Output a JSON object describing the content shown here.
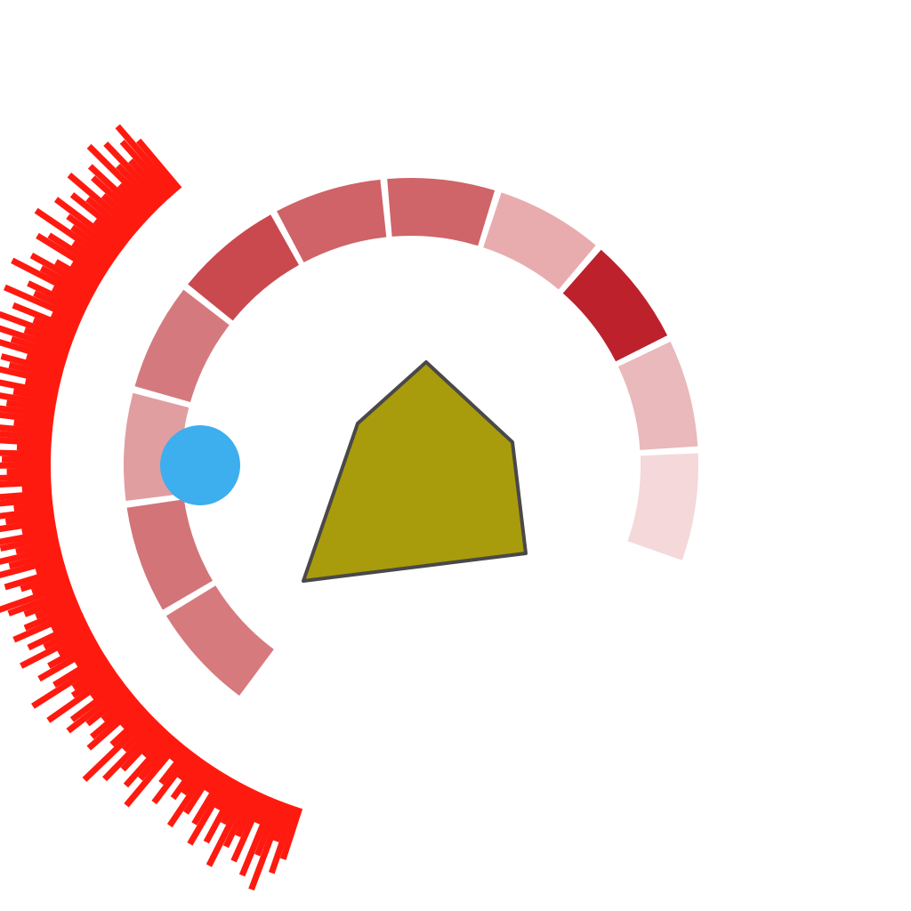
{
  "colors": {
    "background": "#ffffff",
    "spikes": "#ff1a10",
    "polygon_fill": "#a89c0c",
    "polygon_stroke": "#4a4848",
    "circle": "#3daeee"
  },
  "ring_segments": [
    {
      "value": 0.7,
      "color": "#d67a7e"
    },
    {
      "value": 0.72,
      "color": "#d37479"
    },
    {
      "value": 0.45,
      "color": "#e19ea1"
    },
    {
      "value": 0.72,
      "color": "#d47a7e"
    },
    {
      "value": 0.85,
      "color": "#c9494f"
    },
    {
      "value": 0.77,
      "color": "#cf6368"
    },
    {
      "value": 0.77,
      "color": "#cf6469"
    },
    {
      "value": 0.4,
      "color": "#e8acaf"
    },
    {
      "value": 1.0,
      "color": "#bd212c"
    },
    {
      "value": 0.32,
      "color": "#e9b9bb"
    },
    {
      "value": 0.18,
      "color": "#f4d8da"
    }
  ],
  "spike_values": [
    0.55,
    0.72,
    0.4,
    0.95,
    0.6,
    0.85,
    0.3,
    0.75,
    0.5,
    0.65,
    0.9,
    0.45,
    0.7,
    0.35,
    0.8,
    0.6,
    0.25,
    0.55,
    0.75,
    0.4,
    0.5,
    0.3,
    0.65,
    0.45,
    0.2,
    0.85,
    0.55,
    0.7,
    0.35,
    0.6,
    0.8,
    0.45,
    0.95,
    0.5,
    0.3,
    0.7,
    0.6,
    0.4,
    0.55,
    0.75,
    0.65,
    0.35,
    0.85,
    0.5,
    0.45,
    0.9,
    0.6,
    0.3,
    0.7,
    0.55,
    0.4,
    0.8,
    0.5,
    0.65,
    0.35,
    0.75,
    0.6,
    0.45,
    0.55,
    0.7,
    0.85,
    0.4,
    0.5,
    0.65,
    0.3,
    0.75,
    0.55,
    0.95,
    0.45,
    0.6,
    0.7,
    0.35,
    0.8,
    0.5,
    0.65,
    0.4,
    0.9,
    0.55,
    0.3,
    0.75,
    0.6,
    0.45,
    0.85,
    0.5,
    0.7,
    0.35,
    0.65,
    0.55,
    0.8,
    0.4,
    0.75,
    0.6,
    0.5,
    0.9,
    0.45,
    0.7,
    0.35,
    0.85,
    0.55,
    0.65,
    0.4,
    0.75,
    0.6,
    0.95,
    0.5,
    0.8,
    0.45,
    0.7,
    0.3,
    0.85,
    0.55,
    0.65,
    0.4,
    0.9,
    0.6,
    0.75,
    0.5,
    0.35,
    0.8,
    0.7,
    0.45,
    0.95,
    0.55,
    0.65,
    0.85,
    0.4,
    0.75,
    0.6,
    0.9,
    0.5,
    0.7,
    0.8,
    0.45,
    0.95,
    0.6,
    0.85,
    0.55,
    0.75,
    0.9,
    0.65
  ]
}
